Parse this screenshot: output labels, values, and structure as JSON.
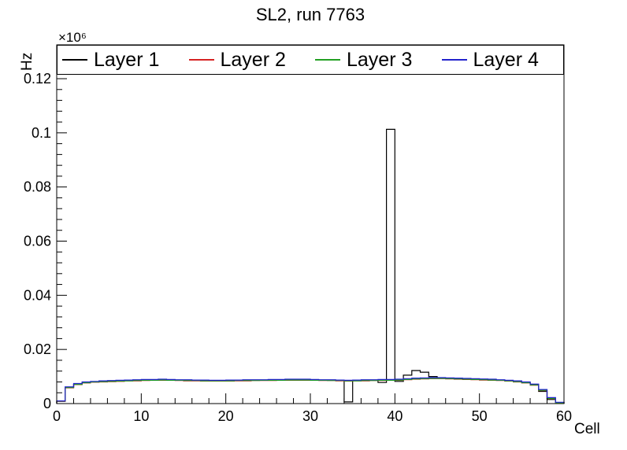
{
  "chart_data": {
    "type": "line",
    "style": "step-histogram",
    "title": "SL2, run 7763",
    "xlabel": "Cell",
    "ylabel": "Hz",
    "y_multiplier": "×10⁶",
    "y_unit_note": "y values are Hz in units of 10^6",
    "xlim": [
      0,
      60
    ],
    "ylim": [
      0,
      0.1325
    ],
    "x_bins": 60,
    "bin_width": 1,
    "x_ticks": [
      0,
      10,
      20,
      30,
      40,
      50,
      60
    ],
    "x_tick_labels": [
      "0",
      "10",
      "20",
      "30",
      "40",
      "50",
      "60"
    ],
    "x_minor_step": 2,
    "y_ticks": [
      0,
      0.02,
      0.04,
      0.06,
      0.08,
      0.1,
      0.12
    ],
    "y_tick_labels": [
      "0",
      "0.02",
      "0.04",
      "0.06",
      "0.08",
      "0.1",
      "0.12"
    ],
    "y_minor_step": 0.004,
    "legend_position": "top",
    "grid": false,
    "series": [
      {
        "name": "Layer 1",
        "color": "#000000",
        "values": [
          0.0008,
          0.006,
          0.0072,
          0.0078,
          0.008,
          0.0082,
          0.0083,
          0.0084,
          0.0085,
          0.0086,
          0.0087,
          0.0087,
          0.0088,
          0.0087,
          0.0086,
          0.0086,
          0.0085,
          0.0085,
          0.0084,
          0.0084,
          0.0085,
          0.0085,
          0.0086,
          0.0086,
          0.0086,
          0.0087,
          0.0087,
          0.0088,
          0.0088,
          0.0088,
          0.0087,
          0.0086,
          0.0086,
          0.0085,
          0.0006,
          0.0085,
          0.0086,
          0.0086,
          0.0078,
          0.1013,
          0.0082,
          0.0105,
          0.0122,
          0.0116,
          0.01,
          0.0094,
          0.0093,
          0.0092,
          0.0091,
          0.009,
          0.0089,
          0.0088,
          0.0086,
          0.0084,
          0.0082,
          0.0078,
          0.007,
          0.0045,
          0.0015,
          0.0004
        ]
      },
      {
        "name": "Layer 2",
        "color": "#d62222",
        "values": [
          0.0008,
          0.0058,
          0.007,
          0.0076,
          0.0079,
          0.008,
          0.0081,
          0.0082,
          0.0084,
          0.0084,
          0.0085,
          0.0086,
          0.0086,
          0.0086,
          0.0085,
          0.0084,
          0.0084,
          0.0083,
          0.0083,
          0.0083,
          0.0083,
          0.0084,
          0.0084,
          0.0085,
          0.0085,
          0.0085,
          0.0086,
          0.0086,
          0.0086,
          0.0086,
          0.0086,
          0.0085,
          0.0085,
          0.0084,
          0.0083,
          0.0084,
          0.0084,
          0.0085,
          0.0085,
          0.0086,
          0.0086,
          0.0088,
          0.009,
          0.0091,
          0.0092,
          0.0092,
          0.0091,
          0.009,
          0.0089,
          0.0088,
          0.0087,
          0.0086,
          0.0085,
          0.0083,
          0.008,
          0.0076,
          0.0068,
          0.0048,
          0.0018,
          0.0003
        ]
      },
      {
        "name": "Layer 3",
        "color": "#22a022",
        "values": [
          0.0009,
          0.0059,
          0.0071,
          0.0077,
          0.008,
          0.0081,
          0.0082,
          0.0083,
          0.0084,
          0.0085,
          0.0086,
          0.0086,
          0.0087,
          0.0086,
          0.0086,
          0.0085,
          0.0085,
          0.0084,
          0.0084,
          0.0084,
          0.0084,
          0.0085,
          0.0085,
          0.0085,
          0.0086,
          0.0086,
          0.0086,
          0.0087,
          0.0087,
          0.0087,
          0.0086,
          0.0086,
          0.0085,
          0.0085,
          0.0084,
          0.0084,
          0.0085,
          0.0085,
          0.0086,
          0.0086,
          0.0087,
          0.0089,
          0.0091,
          0.0092,
          0.0093,
          0.0093,
          0.0092,
          0.0091,
          0.009,
          0.0089,
          0.0088,
          0.0087,
          0.0086,
          0.0084,
          0.0081,
          0.0077,
          0.0069,
          0.0049,
          0.0019,
          0.0003
        ]
      },
      {
        "name": "Layer 4",
        "color": "#2222cc",
        "values": [
          0.001,
          0.0062,
          0.0074,
          0.008,
          0.0082,
          0.0084,
          0.0085,
          0.0086,
          0.0087,
          0.0088,
          0.0089,
          0.0089,
          0.009,
          0.0089,
          0.0088,
          0.0088,
          0.0087,
          0.0087,
          0.0086,
          0.0086,
          0.0087,
          0.0087,
          0.0088,
          0.0088,
          0.0088,
          0.0089,
          0.0089,
          0.009,
          0.009,
          0.009,
          0.0089,
          0.0088,
          0.0088,
          0.0087,
          0.0086,
          0.0087,
          0.0088,
          0.0088,
          0.0089,
          0.0089,
          0.009,
          0.0092,
          0.0094,
          0.0095,
          0.0096,
          0.0096,
          0.0095,
          0.0094,
          0.0093,
          0.0092,
          0.0091,
          0.009,
          0.0088,
          0.0086,
          0.0084,
          0.008,
          0.0072,
          0.0052,
          0.0022,
          0.0005
        ]
      }
    ]
  }
}
